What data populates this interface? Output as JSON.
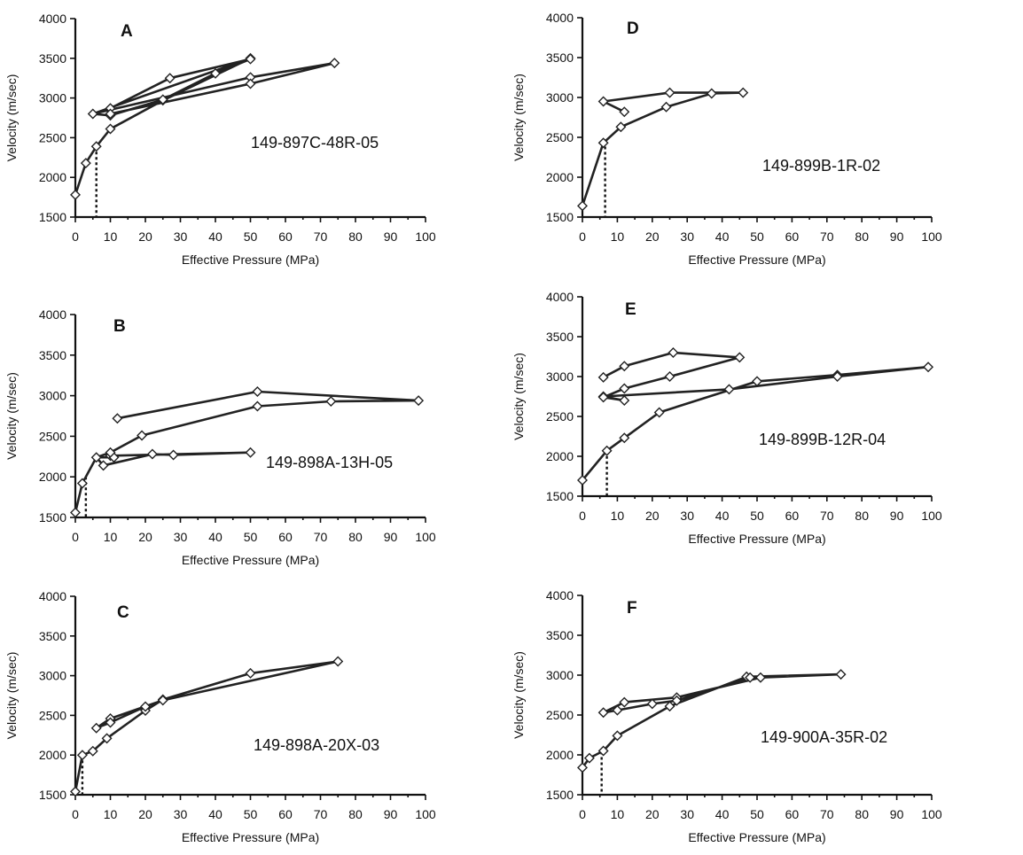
{
  "chart_data": [
    {
      "type": "line",
      "panel": "A",
      "sample": "149-897C-48R-05",
      "xlabel": "Effective Pressure (MPa)",
      "ylabel": "Velocity (m/sec)",
      "xlim": [
        0,
        100
      ],
      "ylim": [
        1500,
        4000
      ],
      "xticks": [
        "0",
        "10",
        "20",
        "30",
        "40",
        "50",
        "60",
        "70",
        "80",
        "90",
        "100"
      ],
      "yticks": [
        "1500",
        "2000",
        "2500",
        "3000",
        "3500",
        "4000"
      ],
      "threshold_x": 6,
      "points": [
        [
          0,
          1780
        ],
        [
          3,
          2180
        ],
        [
          6,
          2390
        ],
        [
          10,
          2610
        ],
        [
          25,
          2970
        ],
        [
          50,
          3500
        ],
        [
          5,
          2800
        ],
        [
          10,
          2870
        ],
        [
          27,
          3250
        ],
        [
          50,
          3490
        ],
        [
          40,
          3310
        ],
        [
          25,
          2980
        ],
        [
          10,
          2780
        ],
        [
          5,
          2800
        ],
        [
          50,
          3260
        ],
        [
          74,
          3440
        ],
        [
          50,
          3180
        ],
        [
          10,
          2800
        ]
      ]
    },
    {
      "type": "line",
      "panel": "B",
      "sample": "149-898A-13H-05",
      "xlabel": "Effective Pressure (MPa)",
      "ylabel": "Velocity (m/sec)",
      "xlim": [
        0,
        100
      ],
      "ylim": [
        1500,
        4000
      ],
      "xticks": [
        "0",
        "10",
        "20",
        "30",
        "40",
        "50",
        "60",
        "70",
        "80",
        "90",
        "100"
      ],
      "yticks": [
        "1500",
        "2000",
        "2500",
        "3000",
        "3500",
        "4000"
      ],
      "threshold_x": 3,
      "points": [
        [
          0,
          1560
        ],
        [
          2,
          1920
        ],
        [
          6,
          2240
        ],
        [
          8,
          2140
        ],
        [
          22,
          2280
        ],
        [
          28,
          2270
        ],
        [
          50,
          2300
        ],
        [
          10,
          2260
        ],
        [
          11,
          2240
        ],
        [
          6,
          2240
        ],
        [
          10,
          2300
        ],
        [
          19,
          2510
        ],
        [
          52,
          2870
        ],
        [
          73,
          2930
        ],
        [
          98,
          2940
        ],
        [
          52,
          3050
        ],
        [
          12,
          2720
        ]
      ]
    },
    {
      "type": "line",
      "panel": "C",
      "sample": "149-898A-20X-03",
      "xlabel": "Effective Pressure (MPa)",
      "ylabel": "Velocity (m/sec)",
      "xlim": [
        0,
        100
      ],
      "ylim": [
        1500,
        4000
      ],
      "xticks": [
        "0",
        "10",
        "20",
        "30",
        "40",
        "50",
        "60",
        "70",
        "80",
        "90",
        "100"
      ],
      "yticks": [
        "1500",
        "2000",
        "2500",
        "3000",
        "3500",
        "4000"
      ],
      "threshold_x": 2,
      "points": [
        [
          0,
          1540
        ],
        [
          2,
          2000
        ],
        [
          5,
          2050
        ],
        [
          9,
          2210
        ],
        [
          20,
          2560
        ],
        [
          25,
          2700
        ],
        [
          50,
          3030
        ],
        [
          75,
          3180
        ],
        [
          25,
          2690
        ],
        [
          10,
          2460
        ],
        [
          6,
          2340
        ],
        [
          10,
          2410
        ],
        [
          20,
          2610
        ]
      ]
    },
    {
      "type": "line",
      "panel": "D",
      "sample": "149-899B-1R-02",
      "xlabel": "Effective Pressure (MPa)",
      "ylabel": "Velocity (m/sec)",
      "xlim": [
        0,
        100
      ],
      "ylim": [
        1500,
        4000
      ],
      "xticks": [
        "0",
        "10",
        "20",
        "30",
        "40",
        "50",
        "60",
        "70",
        "80",
        "90",
        "100"
      ],
      "yticks": [
        "1500",
        "2000",
        "2500",
        "3000",
        "3500",
        "4000"
      ],
      "threshold_x": 6.5,
      "points": [
        [
          0,
          1640
        ],
        [
          6,
          2430
        ],
        [
          11,
          2630
        ],
        [
          24,
          2880
        ],
        [
          37,
          3050
        ],
        [
          46,
          3060
        ],
        [
          25,
          3060
        ],
        [
          6,
          2950
        ],
        [
          12,
          2820
        ]
      ]
    },
    {
      "type": "line",
      "panel": "E",
      "sample": "149-899B-12R-04",
      "xlabel": "Effective Pressure (MPa)",
      "ylabel": "Velocity (m/sec)",
      "xlim": [
        0,
        100
      ],
      "ylim": [
        1500,
        4000
      ],
      "xticks": [
        "0",
        "10",
        "20",
        "30",
        "40",
        "50",
        "60",
        "70",
        "80",
        "90",
        "100"
      ],
      "yticks": [
        "1500",
        "2000",
        "2500",
        "3000",
        "3500",
        "4000"
      ],
      "threshold_x": 7,
      "points": [
        [
          0,
          1700
        ],
        [
          7,
          2070
        ],
        [
          12,
          2230
        ],
        [
          22,
          2550
        ],
        [
          50,
          2940
        ],
        [
          73,
          3020
        ],
        [
          99,
          3120
        ],
        [
          73,
          3000
        ],
        [
          42,
          2840
        ],
        [
          6,
          2750
        ],
        [
          12,
          2700
        ],
        [
          6,
          2740
        ],
        [
          12,
          2850
        ],
        [
          25,
          3000
        ],
        [
          45,
          3240
        ],
        [
          26,
          3300
        ],
        [
          12,
          3130
        ],
        [
          6,
          2990
        ]
      ]
    },
    {
      "type": "line",
      "panel": "F",
      "sample": "149-900A-35R-02",
      "xlabel": "Effective Pressure (MPa)",
      "ylabel": "Velocity (m/sec)",
      "xlim": [
        0,
        100
      ],
      "ylim": [
        1500,
        4000
      ],
      "xticks": [
        "0",
        "10",
        "20",
        "30",
        "40",
        "50",
        "60",
        "70",
        "80",
        "90",
        "100"
      ],
      "yticks": [
        "1500",
        "2000",
        "2500",
        "3000",
        "3500",
        "4000"
      ],
      "threshold_x": 5.5,
      "points": [
        [
          0,
          1840
        ],
        [
          2,
          1960
        ],
        [
          6,
          2050
        ],
        [
          10,
          2240
        ],
        [
          25,
          2610
        ],
        [
          47,
          2980
        ],
        [
          74,
          3010
        ],
        [
          51,
          2970
        ],
        [
          27,
          2720
        ],
        [
          12,
          2660
        ],
        [
          6,
          2530
        ],
        [
          10,
          2560
        ],
        [
          20,
          2640
        ],
        [
          27,
          2680
        ],
        [
          48,
          2970
        ]
      ]
    }
  ]
}
